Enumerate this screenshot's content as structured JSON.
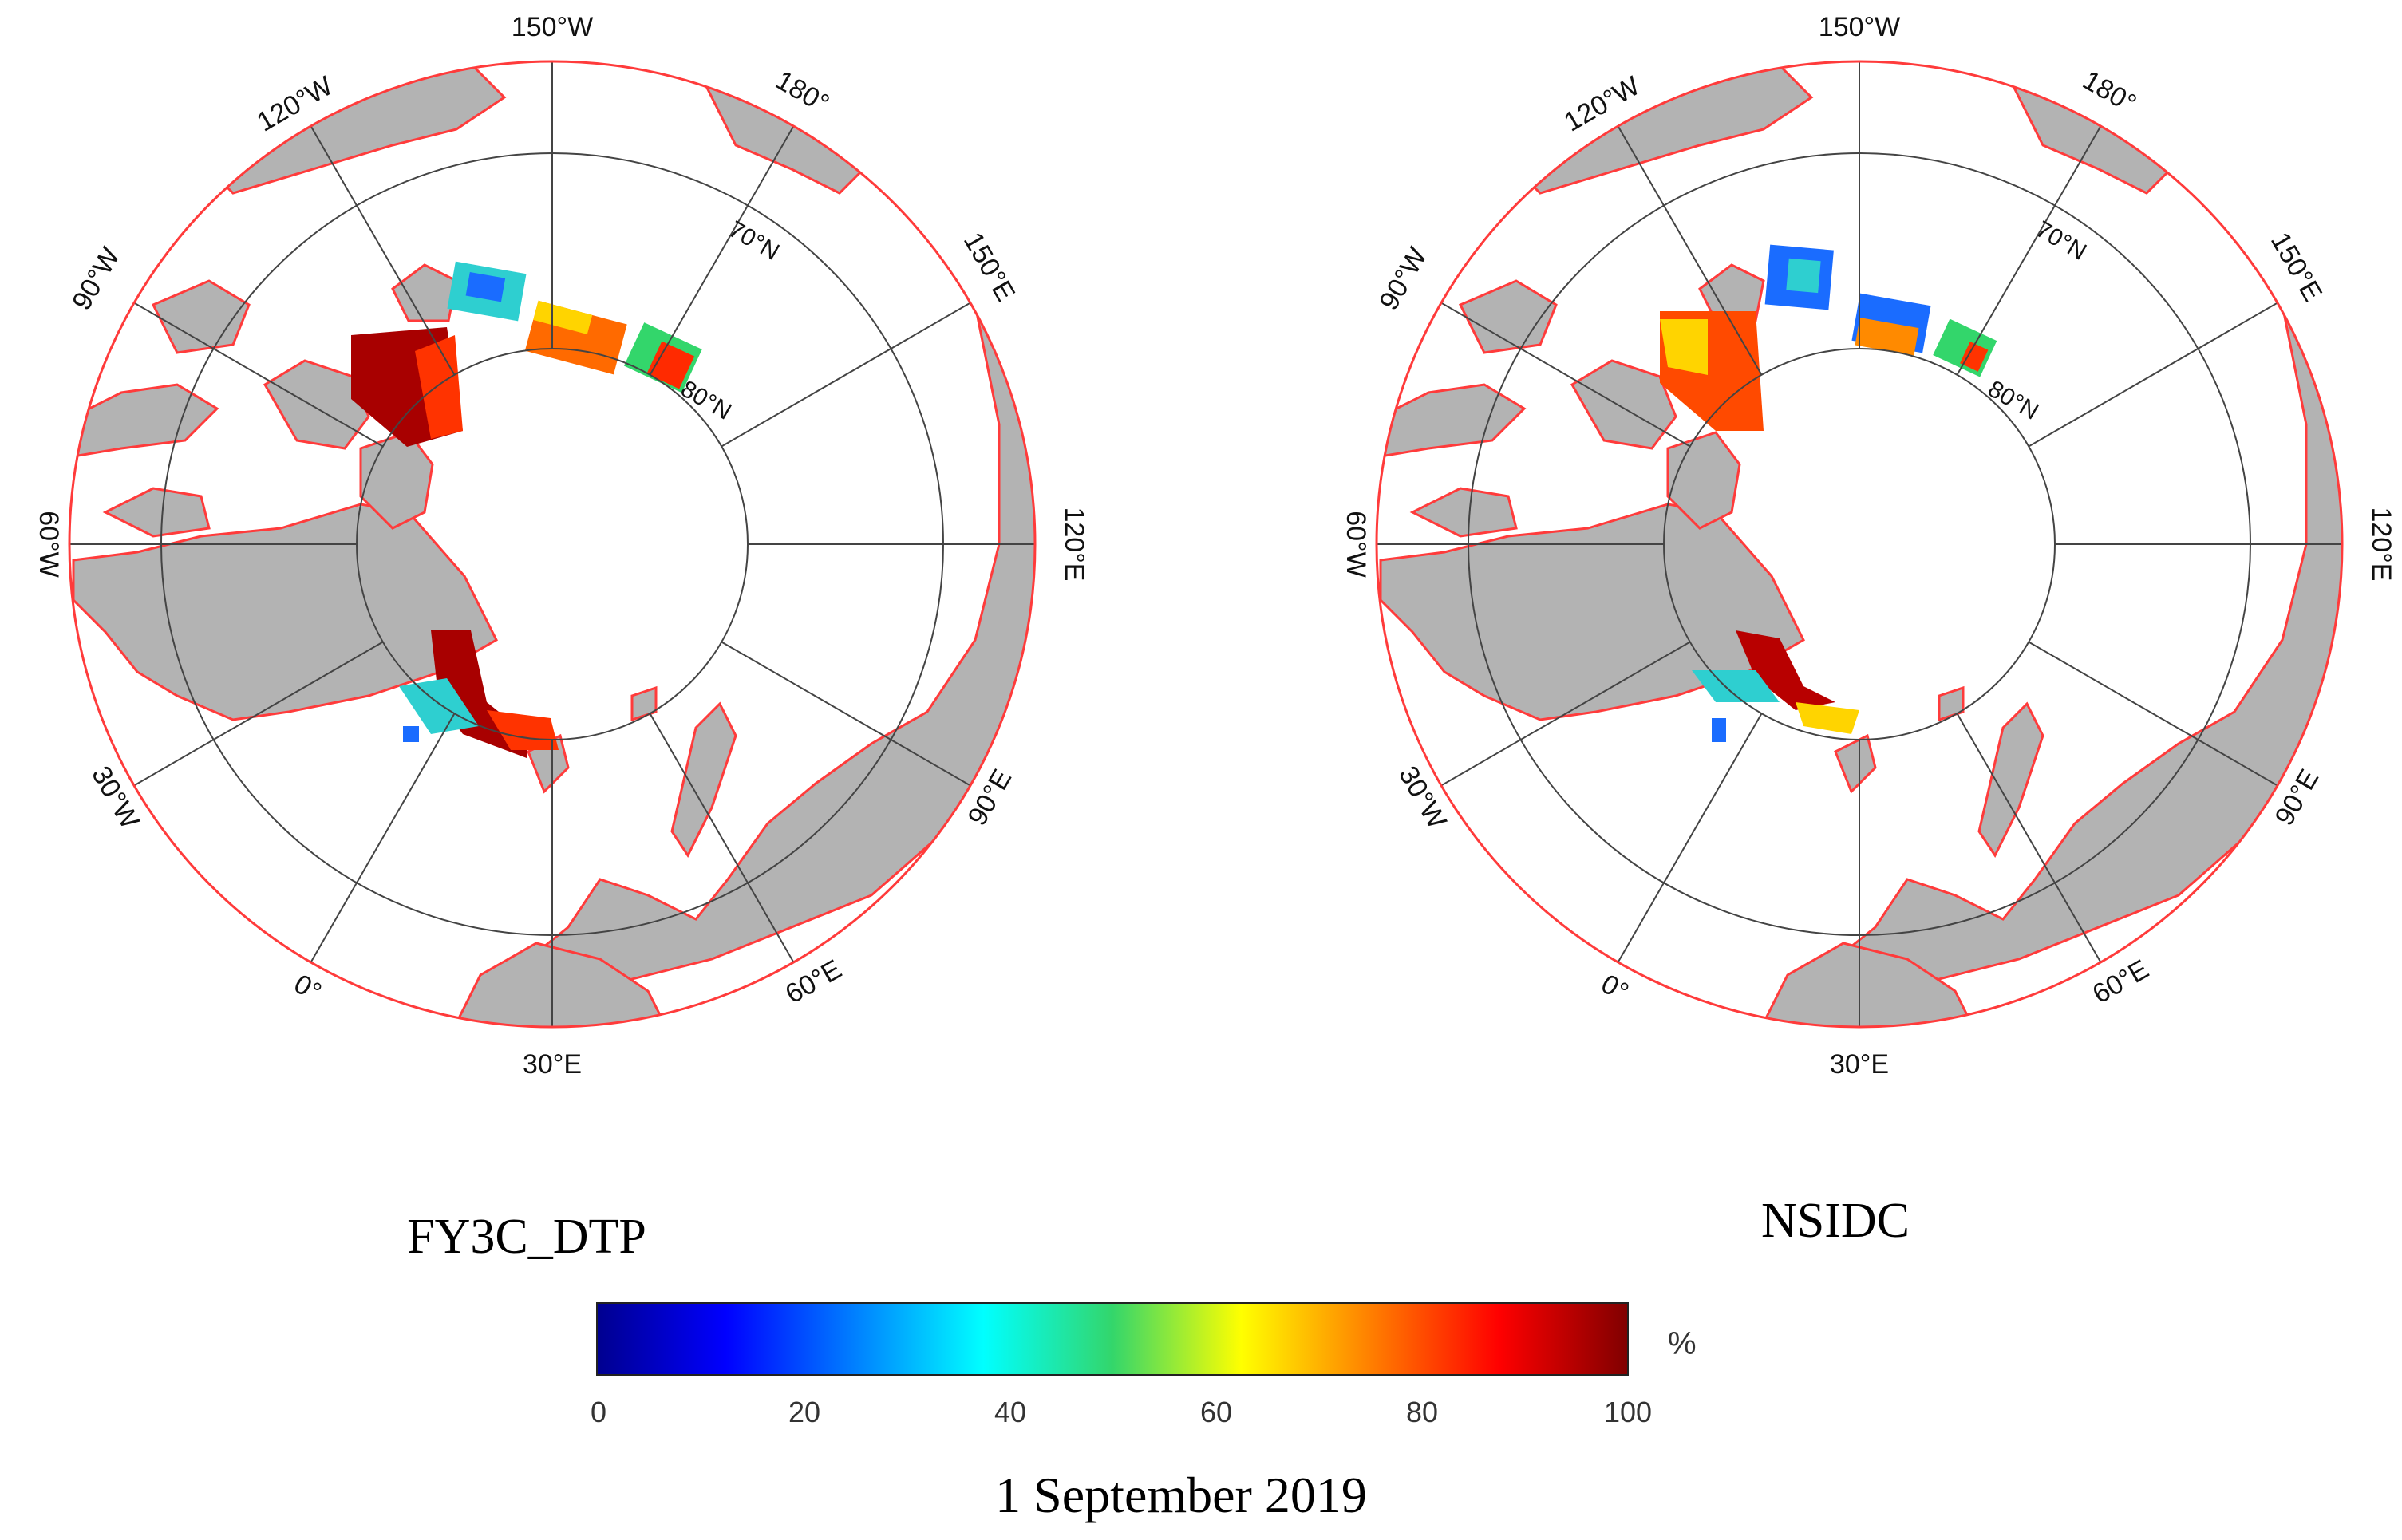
{
  "maps": [
    {
      "id": "fy3c",
      "title": "FY3C_DTP",
      "longitude_labels": [
        "150°W",
        "180°",
        "150°E",
        "120°E",
        "90°E",
        "60°E",
        "30°E",
        "0°",
        "30°W",
        "60°W",
        "90°W",
        "120°W"
      ],
      "latitude_labels": [
        "70°N",
        "80°N"
      ]
    },
    {
      "id": "nsidc",
      "title": "NSIDC",
      "longitude_labels": [
        "150°W",
        "180°",
        "150°E",
        "120°E",
        "90°E",
        "60°E",
        "30°E",
        "0°",
        "30°W",
        "60°W",
        "90°W",
        "120°W"
      ],
      "latitude_labels": [
        "70°N",
        "80°N"
      ]
    }
  ],
  "colorbar": {
    "unit": "%",
    "ticks": [
      "0",
      "20",
      "40",
      "60",
      "80",
      "100"
    ],
    "range": [
      0,
      100
    ],
    "colormap": "jet"
  },
  "caption": "1 September 2019",
  "colors": {
    "land": "#b3b3b3",
    "coast": "#ff3b3b",
    "grid": "#444444"
  }
}
